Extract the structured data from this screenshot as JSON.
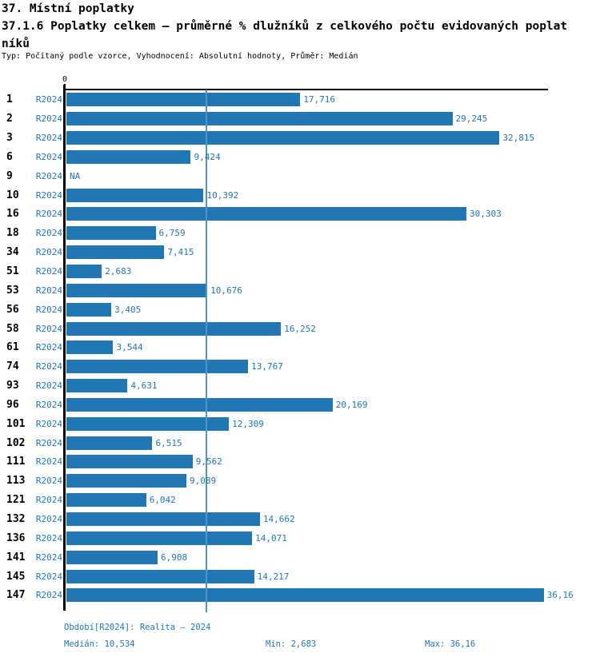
{
  "header": {
    "title": "37. Místní poplatky",
    "subtitle_line1": "37.1.6 Poplatky celkem – průměrné % dlužníků z celkového počtu evidovaných poplat",
    "subtitle_line2": "níků",
    "meta": "Typ: Počítaný podle vzorce, Vyhodnocení: Absolutní hodnoty, Průměr: Medián"
  },
  "chart_data": {
    "type": "bar",
    "orientation": "horizontal",
    "axis_zero_label": "0",
    "period_label": "R2024",
    "categories": [
      "1",
      "2",
      "3",
      "6",
      "9",
      "10",
      "16",
      "18",
      "34",
      "51",
      "53",
      "56",
      "58",
      "61",
      "74",
      "93",
      "96",
      "101",
      "102",
      "111",
      "113",
      "121",
      "132",
      "136",
      "141",
      "145",
      "147"
    ],
    "values": [
      17.716,
      29.245,
      32.815,
      9.424,
      null,
      10.392,
      30.303,
      6.759,
      7.415,
      2.683,
      10.676,
      3.405,
      16.252,
      3.544,
      13.767,
      4.631,
      20.169,
      12.309,
      6.515,
      9.562,
      9.089,
      6.042,
      14.662,
      14.071,
      6.908,
      14.217,
      36.16
    ],
    "value_labels": [
      "17,716",
      "29,245",
      "32,815",
      "9,424",
      "NA",
      "10,392",
      "30,303",
      "6,759",
      "7,415",
      "2,683",
      "10,676",
      "3,405",
      "16,252",
      "3,544",
      "13,767",
      "4,631",
      "20,169",
      "12,309",
      "6,515",
      "9,562",
      "9,089",
      "6,042",
      "14,662",
      "14,071",
      "6,908",
      "14,217",
      "36,16"
    ],
    "median_value": 10.534,
    "xlim": [
      0,
      36.5
    ],
    "grid": "median-line-only",
    "legend": "none",
    "bar_color": "#2077b4",
    "text_color": "#2077b4",
    "median_line_color": "#4d96c7"
  },
  "footer": {
    "period_info": "Období[R2024]: Realita – 2024",
    "median": "Medián: 10,534",
    "min": "Min: 2,683",
    "max": "Max: 36,16"
  }
}
